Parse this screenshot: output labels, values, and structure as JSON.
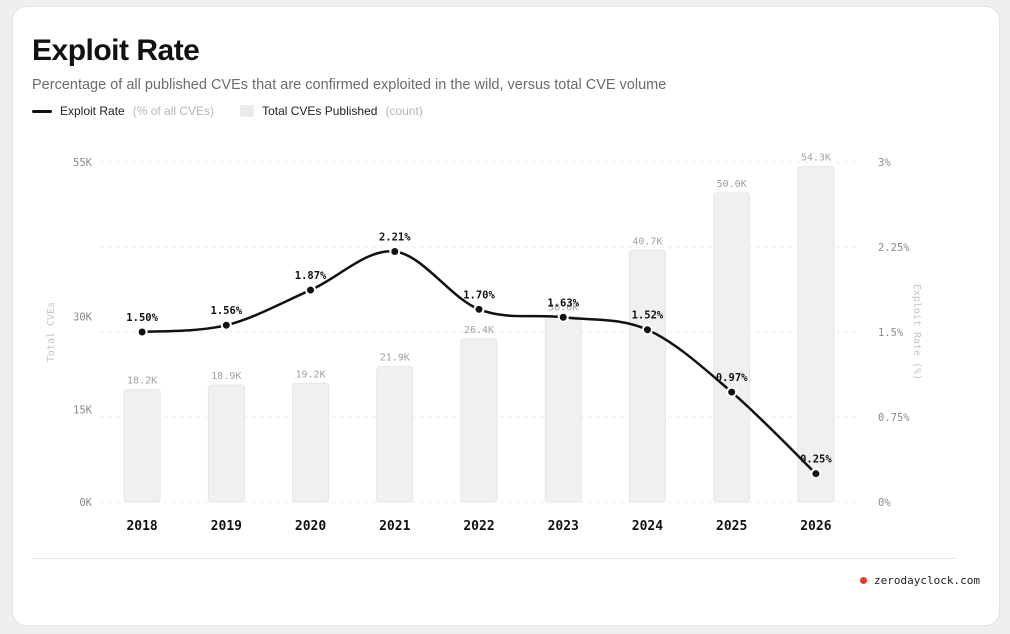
{
  "header": {
    "title": "Exploit Rate",
    "subtitle": "Percentage of all published CVEs that are confirmed exploited in the wild, versus total CVE volume"
  },
  "legend": {
    "line_label": "Exploit Rate",
    "line_unit": "(% of all CVEs)",
    "bar_label": "Total CVEs Published",
    "bar_unit": "(count)"
  },
  "footer": {
    "source": "zerodayclock.com",
    "dot_color": "#e53935"
  },
  "chart_data": {
    "type": "bar+line",
    "categories": [
      "2018",
      "2019",
      "2020",
      "2021",
      "2022",
      "2023",
      "2024",
      "2025",
      "2026"
    ],
    "series": [
      {
        "name": "Total CVEs Published",
        "type": "bar",
        "axis": "left",
        "values": [
          18200,
          18900,
          19200,
          21900,
          26400,
          30000,
          40700,
          50000,
          54300
        ],
        "labels": [
          "18.2K",
          "18.9K",
          "19.2K",
          "21.9K",
          "26.4K",
          "30.0K",
          "40.7K",
          "50.0K",
          "54.3K"
        ],
        "color": "#f0f0f0"
      },
      {
        "name": "Exploit Rate",
        "type": "line",
        "axis": "right",
        "values": [
          1.5,
          1.56,
          1.87,
          2.21,
          1.7,
          1.63,
          1.52,
          0.97,
          0.25
        ],
        "labels": [
          "1.50%",
          "1.56%",
          "1.87%",
          "2.21%",
          "1.70%",
          "1.63%",
          "1.52%",
          "0.97%",
          "0.25%"
        ],
        "color": "#111111"
      }
    ],
    "y_left": {
      "label": "Total CVEs",
      "range": [
        0,
        55000
      ],
      "ticks": [
        0,
        15000,
        30000,
        55000
      ],
      "tick_labels": [
        "0K",
        "15K",
        "30K",
        "55K"
      ]
    },
    "y_right": {
      "label": "Exploit Rate (%)",
      "range": [
        0,
        3
      ],
      "ticks": [
        0,
        0.75,
        1.5,
        2.25,
        3
      ],
      "tick_labels": [
        "0%",
        "0.75%",
        "1.5%",
        "2.25%",
        "3%"
      ]
    },
    "grid": true,
    "legend_position": "top-left"
  }
}
